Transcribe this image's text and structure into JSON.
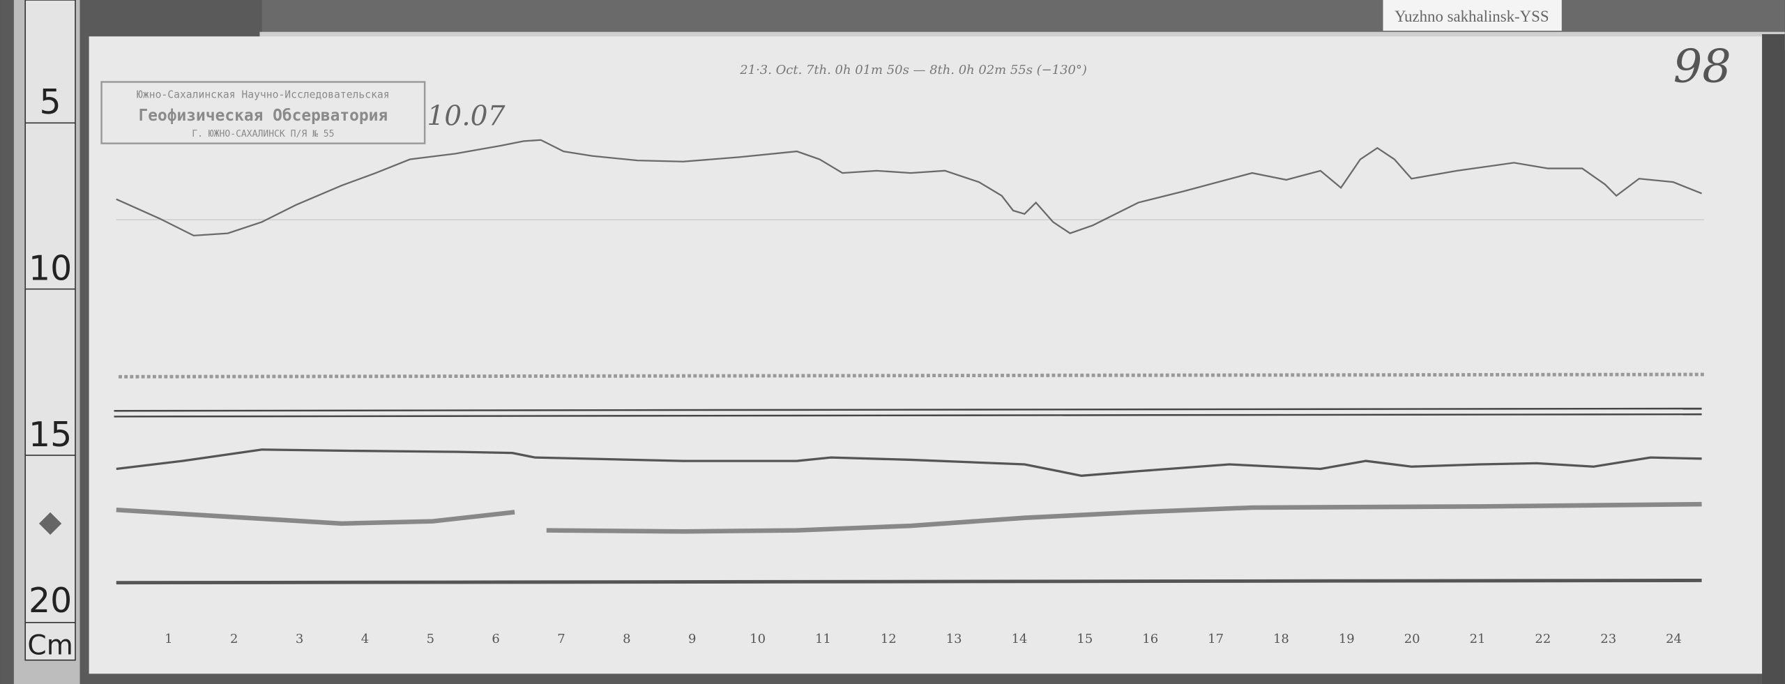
{
  "station_label": "Yuzhno sakhalinsk-YSS",
  "sheet_number": "98",
  "date_note": "10.07",
  "handwritten_note": "21·3. Oct. 7th. 0h 01m 50s — 8th. 0h 02m 55s (−130°)",
  "stamp": {
    "line1": "Южно-Сахалинская Научно-Исследовательская",
    "line2": "Геофизическая Обсерватория",
    "line3": "Г. ЮЖНО-САХАЛИНСК  П/Я № 55"
  },
  "ruler": {
    "marks": [
      "5",
      "10",
      "15",
      "20"
    ],
    "unit": "Cm"
  },
  "hour_labels": [
    "1",
    "2",
    "3",
    "4",
    "5",
    "6",
    "7",
    "8",
    "9",
    "10",
    "11",
    "12",
    "13",
    "14",
    "15",
    "16",
    "17",
    "18",
    "19",
    "20",
    "21",
    "22",
    "23",
    "24"
  ],
  "colors": {
    "paper": "#e9e9e9",
    "trace": "#6a6a6a",
    "background": "#555555"
  }
}
